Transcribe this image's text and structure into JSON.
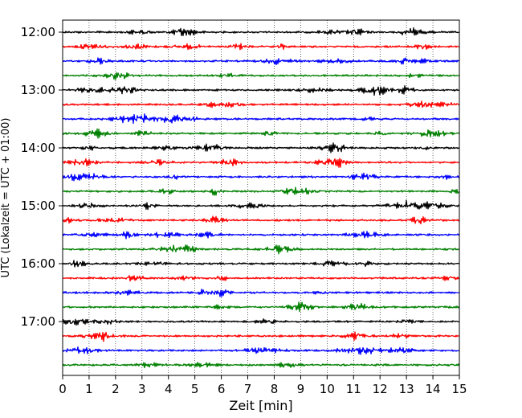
{
  "chart_data": {
    "type": "line",
    "title": "",
    "xlabel": "Zeit  [min]",
    "ylabel": "UTC (Lokalzeit = UTC + 01:00)",
    "xlim": [
      0,
      15
    ],
    "xticks": [
      0,
      1,
      2,
      3,
      4,
      5,
      6,
      7,
      8,
      9,
      10,
      11,
      12,
      13,
      14,
      15
    ],
    "yticks": [
      "12:00",
      "13:00",
      "14:00",
      "15:00",
      "16:00",
      "17:00"
    ],
    "grid": "vertical dotted lines at each minute",
    "trace_interval_minutes": 15,
    "trace_colors": [
      "#000000",
      "#ff0000",
      "#0000ff",
      "#008000"
    ],
    "traces": [
      {
        "start": "12:00",
        "color": "#000000"
      },
      {
        "start": "12:15",
        "color": "#ff0000"
      },
      {
        "start": "12:30",
        "color": "#0000ff"
      },
      {
        "start": "12:45",
        "color": "#008000"
      },
      {
        "start": "13:00",
        "color": "#000000"
      },
      {
        "start": "13:15",
        "color": "#ff0000"
      },
      {
        "start": "13:30",
        "color": "#0000ff"
      },
      {
        "start": "13:45",
        "color": "#008000"
      },
      {
        "start": "14:00",
        "color": "#000000"
      },
      {
        "start": "14:15",
        "color": "#ff0000"
      },
      {
        "start": "14:30",
        "color": "#0000ff"
      },
      {
        "start": "14:45",
        "color": "#008000"
      },
      {
        "start": "15:00",
        "color": "#000000"
      },
      {
        "start": "15:15",
        "color": "#ff0000"
      },
      {
        "start": "15:30",
        "color": "#0000ff"
      },
      {
        "start": "15:45",
        "color": "#008000"
      },
      {
        "start": "16:00",
        "color": "#000000"
      },
      {
        "start": "16:15",
        "color": "#ff0000"
      },
      {
        "start": "16:30",
        "color": "#0000ff"
      },
      {
        "start": "16:45",
        "color": "#008000"
      },
      {
        "start": "17:00",
        "color": "#000000"
      },
      {
        "start": "17:15",
        "color": "#ff0000"
      },
      {
        "start": "17:30",
        "color": "#0000ff"
      },
      {
        "start": "17:45",
        "color": "#008000"
      }
    ]
  }
}
